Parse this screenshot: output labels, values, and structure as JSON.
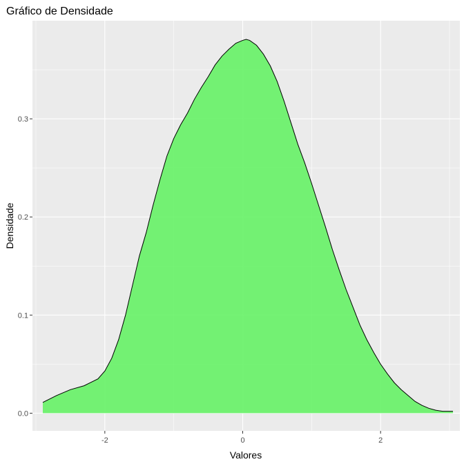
{
  "chart_data": {
    "type": "area",
    "title": "Gráfico de Densidade",
    "xlabel": "Valores",
    "ylabel": "Densidade",
    "xlim": [
      -3.05,
      3.15
    ],
    "ylim": [
      -0.018,
      0.4
    ],
    "x_ticks": [
      -2,
      0,
      2
    ],
    "x_tick_labels": [
      "-2",
      "0",
      "2"
    ],
    "x_minor_ticks": [
      -3,
      -1,
      1,
      3
    ],
    "y_ticks": [
      0.0,
      0.1,
      0.2,
      0.3
    ],
    "y_tick_labels": [
      "0.0",
      "0.1",
      "0.2",
      "0.3"
    ],
    "y_minor_ticks": [
      0.05,
      0.15,
      0.25,
      0.35
    ],
    "grid": true,
    "legend": "none",
    "fill_color": "#66f266",
    "fill_opacity": 0.9,
    "line_color": "#000000",
    "panel_background": "#ebebeb",
    "grid_color": "#ffffff",
    "points": [
      [
        -2.9,
        0.011
      ],
      [
        -2.7,
        0.018
      ],
      [
        -2.5,
        0.024
      ],
      [
        -2.3,
        0.028
      ],
      [
        -2.1,
        0.035
      ],
      [
        -2.0,
        0.043
      ],
      [
        -1.9,
        0.056
      ],
      [
        -1.8,
        0.075
      ],
      [
        -1.7,
        0.1
      ],
      [
        -1.6,
        0.13
      ],
      [
        -1.5,
        0.16
      ],
      [
        -1.4,
        0.184
      ],
      [
        -1.3,
        0.212
      ],
      [
        -1.2,
        0.238
      ],
      [
        -1.1,
        0.262
      ],
      [
        -1.0,
        0.28
      ],
      [
        -0.9,
        0.294
      ],
      [
        -0.8,
        0.306
      ],
      [
        -0.7,
        0.32
      ],
      [
        -0.6,
        0.332
      ],
      [
        -0.5,
        0.343
      ],
      [
        -0.4,
        0.355
      ],
      [
        -0.3,
        0.364
      ],
      [
        -0.2,
        0.371
      ],
      [
        -0.1,
        0.377
      ],
      [
        0.0,
        0.38
      ],
      [
        0.05,
        0.381
      ],
      [
        0.1,
        0.38
      ],
      [
        0.2,
        0.375
      ],
      [
        0.3,
        0.366
      ],
      [
        0.4,
        0.354
      ],
      [
        0.5,
        0.338
      ],
      [
        0.6,
        0.318
      ],
      [
        0.7,
        0.296
      ],
      [
        0.8,
        0.274
      ],
      [
        0.9,
        0.255
      ],
      [
        1.0,
        0.234
      ],
      [
        1.1,
        0.212
      ],
      [
        1.2,
        0.19
      ],
      [
        1.3,
        0.167
      ],
      [
        1.4,
        0.146
      ],
      [
        1.5,
        0.126
      ],
      [
        1.6,
        0.108
      ],
      [
        1.7,
        0.09
      ],
      [
        1.8,
        0.075
      ],
      [
        1.9,
        0.062
      ],
      [
        2.0,
        0.05
      ],
      [
        2.1,
        0.04
      ],
      [
        2.2,
        0.031
      ],
      [
        2.3,
        0.024
      ],
      [
        2.4,
        0.018
      ],
      [
        2.5,
        0.012
      ],
      [
        2.6,
        0.008
      ],
      [
        2.7,
        0.005
      ],
      [
        2.8,
        0.003
      ],
      [
        2.9,
        0.002
      ],
      [
        3.05,
        0.002
      ]
    ]
  }
}
